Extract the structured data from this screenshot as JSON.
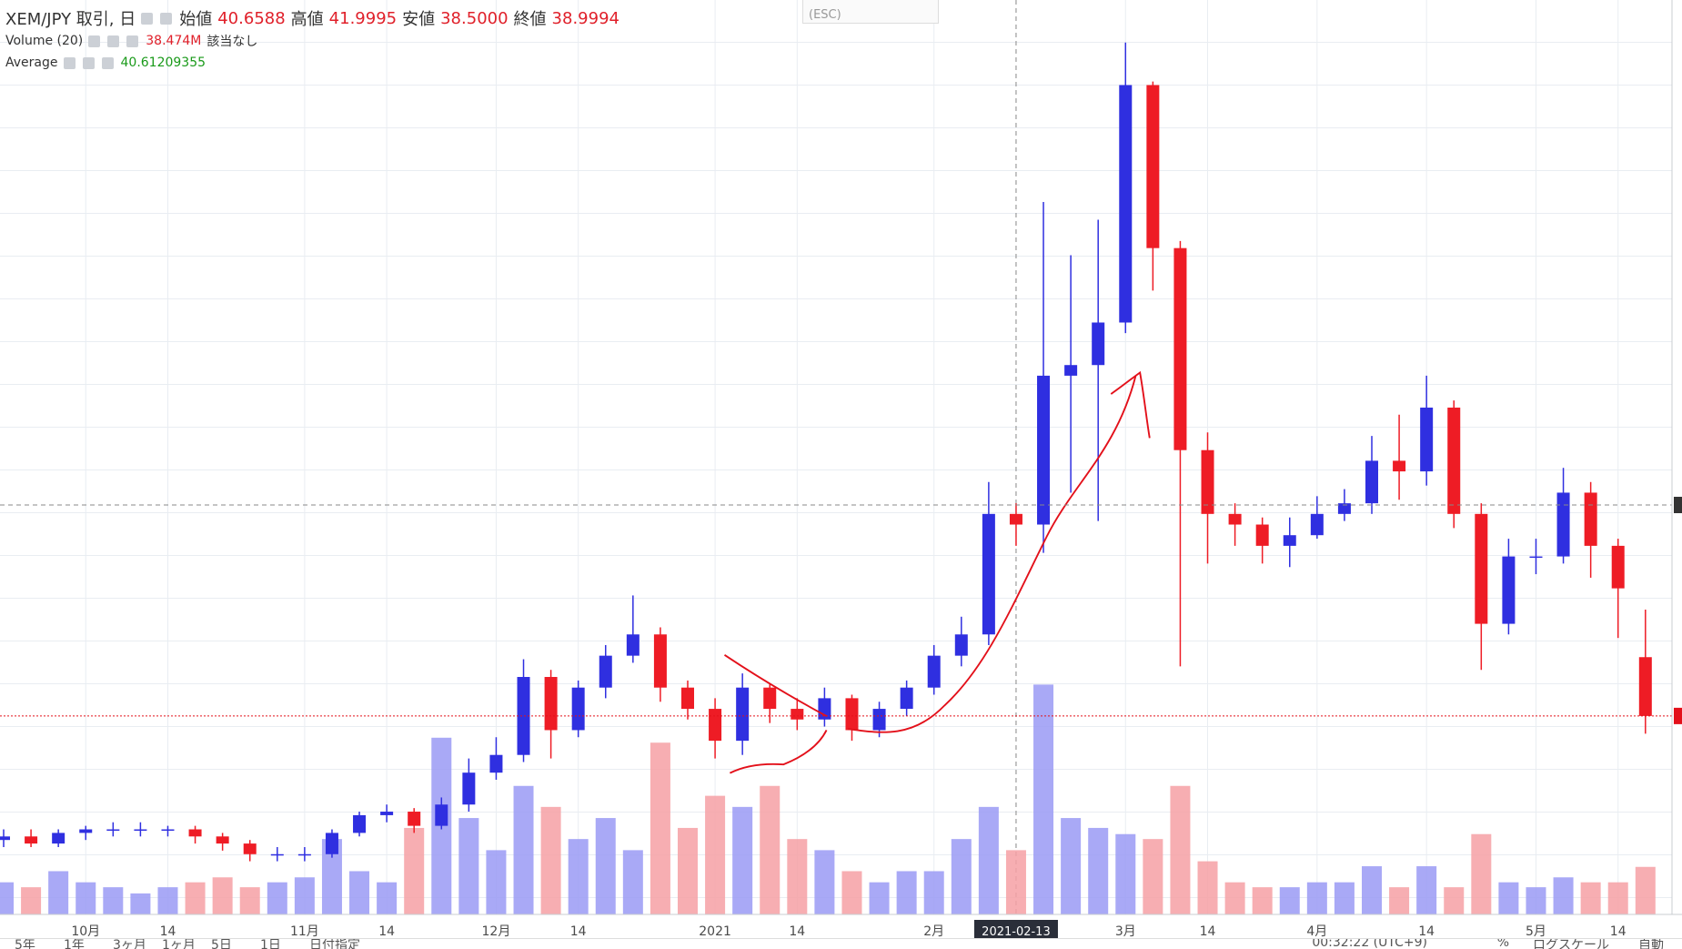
{
  "header": {
    "symbol": "XEM/JPY 取引, 日",
    "open_label": "始値",
    "open": "40.6588",
    "high_label": "高値",
    "high": "41.9995",
    "low_label": "安値",
    "low": "38.5000",
    "close_label": "終値",
    "close": "38.9994"
  },
  "volume_study": {
    "name": "Volume (20)",
    "value": "38.474M",
    "ma": "該当なし"
  },
  "average_study": {
    "name": "Average",
    "value": "40.61209355"
  },
  "tooltip": "(ESC)",
  "toolbar": {
    "ranges": [
      "5年",
      "1年",
      "3ヶ月",
      "1ヶ月",
      "5日",
      "1日",
      "日付指定"
    ],
    "clock": "00:32:22 (UTC+9)",
    "percent": "%",
    "log": "ログスケール",
    "auto": "自動"
  },
  "chart_data": {
    "type": "candlestick",
    "categories": [
      null,
      null,
      null,
      "10月",
      null,
      null,
      "14",
      null,
      null,
      null,
      null,
      "11月",
      null,
      null,
      "14",
      null,
      null,
      null,
      "12月",
      null,
      null,
      "14",
      null,
      null,
      null,
      null,
      "2021",
      null,
      null,
      "14",
      null,
      null,
      null,
      null,
      "2月",
      null,
      null,
      "2021-02-13",
      null,
      null,
      null,
      "3月",
      null,
      null,
      "14",
      null,
      null,
      null,
      "4月",
      null,
      null,
      null,
      "14",
      null,
      null,
      null,
      "5月",
      null,
      null,
      "14",
      null
    ],
    "open": [
      35.5,
      35.6,
      35.4,
      35.7,
      35.8,
      35.8,
      35.8,
      35.8,
      35.6,
      35.4,
      35.1,
      35.1,
      35.1,
      35.7,
      36.2,
      36.3,
      35.9,
      36.5,
      37.4,
      37.9,
      40.1,
      38.6,
      39.8,
      40.7,
      41.3,
      39.8,
      39.2,
      38.3,
      39.8,
      39.2,
      38.9,
      39.5,
      38.6,
      39.2,
      39.8,
      40.7,
      41.3,
      44.7,
      44.4,
      48.6,
      48.9,
      50.1,
      56.8,
      52.2,
      46.5,
      44.7,
      44.4,
      43.8,
      44.1,
      44.7,
      45.0,
      46.2,
      45.9,
      47.7,
      44.7,
      41.6,
      43.5,
      43.5,
      45.3,
      43.8,
      40.6588
    ],
    "high": [
      35.8,
      35.8,
      35.8,
      35.9,
      36.0,
      36.0,
      35.9,
      35.9,
      35.7,
      35.5,
      35.3,
      35.3,
      35.8,
      36.3,
      36.5,
      36.4,
      36.7,
      37.8,
      38.4,
      40.6,
      40.3,
      40.0,
      41.0,
      42.4,
      41.5,
      40.0,
      39.5,
      40.2,
      39.9,
      39.5,
      39.8,
      39.6,
      39.4,
      40.0,
      41.0,
      41.8,
      45.6,
      45.0,
      53.5,
      52.0,
      53.0,
      58.0,
      56.9,
      52.4,
      47.0,
      45.0,
      44.6,
      44.6,
      45.2,
      45.4,
      46.9,
      47.5,
      48.6,
      47.9,
      45.0,
      44.0,
      44.0,
      46.0,
      45.6,
      44.0,
      41.9995
    ],
    "low": [
      35.3,
      35.3,
      35.3,
      35.5,
      35.6,
      35.6,
      35.6,
      35.4,
      35.2,
      34.9,
      34.9,
      34.9,
      35.0,
      35.6,
      36.0,
      35.7,
      35.8,
      36.3,
      37.2,
      37.7,
      37.8,
      38.4,
      39.5,
      40.5,
      39.4,
      38.9,
      37.8,
      37.9,
      38.8,
      38.6,
      38.7,
      38.3,
      38.4,
      39.0,
      39.6,
      40.4,
      41.0,
      43.8,
      43.6,
      45.3,
      44.5,
      49.8,
      51.0,
      40.4,
      43.3,
      43.8,
      43.3,
      43.2,
      44.0,
      44.5,
      44.7,
      45.1,
      45.5,
      44.3,
      40.3,
      41.3,
      43.0,
      43.3,
      42.9,
      41.2,
      38.5
    ],
    "close": [
      35.6,
      35.4,
      35.7,
      35.8,
      35.8,
      35.8,
      35.8,
      35.6,
      35.4,
      35.1,
      35.1,
      35.1,
      35.7,
      36.2,
      36.3,
      35.9,
      36.5,
      37.4,
      37.9,
      40.1,
      38.6,
      39.8,
      40.7,
      41.3,
      39.8,
      39.2,
      38.3,
      39.8,
      39.2,
      38.9,
      39.5,
      38.6,
      39.2,
      39.8,
      40.7,
      41.3,
      44.7,
      44.4,
      48.6,
      48.9,
      50.1,
      56.8,
      52.2,
      46.5,
      44.7,
      44.4,
      43.8,
      44.1,
      44.7,
      45.0,
      46.2,
      45.9,
      47.7,
      44.7,
      41.6,
      43.5,
      43.5,
      45.3,
      43.8,
      42.6,
      38.9994
    ],
    "volume": [
      26,
      22,
      35,
      26,
      22,
      17,
      22,
      26,
      30,
      22,
      26,
      30,
      61,
      35,
      26,
      70,
      143,
      78,
      52,
      104,
      87,
      61,
      78,
      52,
      139,
      70,
      96,
      87,
      104,
      61,
      52,
      35,
      26,
      35,
      35,
      61,
      87,
      52,
      186,
      78,
      70,
      65,
      61,
      104,
      43,
      26,
      22,
      22,
      26,
      26,
      39,
      22,
      39,
      22,
      65,
      26,
      22,
      30,
      26,
      26,
      38.474
    ],
    "ylim": [
      33.4,
      59.2
    ],
    "vlim": [
      0,
      740
    ],
    "up_color": "#2f2fe0",
    "down_color": "#ee1c25",
    "volume_up_color": "#9a9af5",
    "volume_down_color": "#f6a0a4",
    "crosshair_index": 37
  }
}
